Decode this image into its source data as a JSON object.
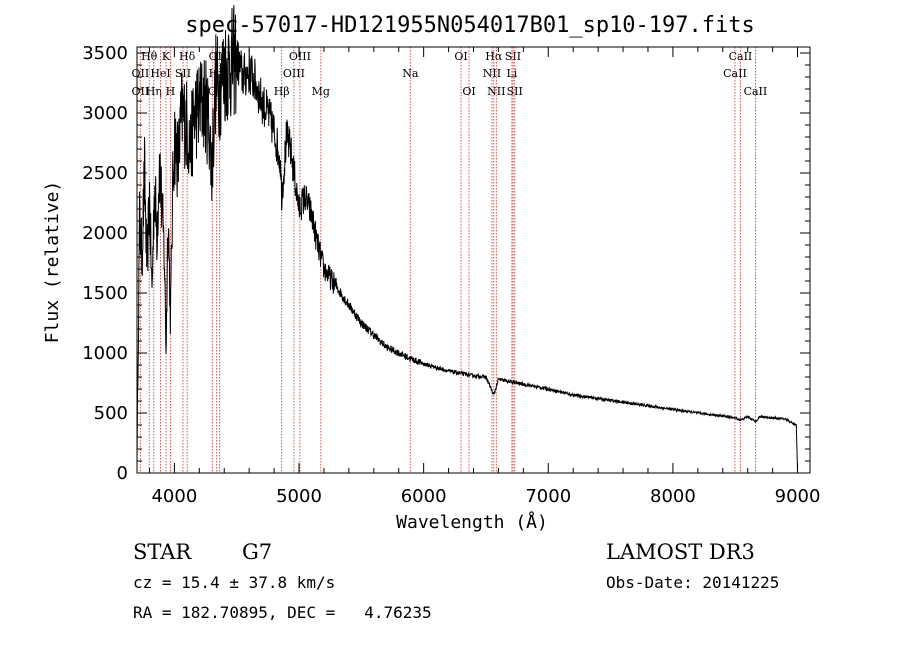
{
  "chart_data": {
    "type": "line",
    "title": "spec-57017-HD121955N054017B01_sp10-197.fits",
    "xlabel": "Wavelength (Å)",
    "ylabel": "Flux (relative)",
    "xlim": [
      3700,
      9100
    ],
    "ylim": [
      0,
      3550
    ],
    "xticks": [
      4000,
      5000,
      6000,
      7000,
      8000,
      9000
    ],
    "yticks": [
      0,
      500,
      1000,
      1500,
      2000,
      2500,
      3000,
      3500
    ],
    "series": [
      {
        "name": "flux",
        "color": "#000000",
        "x": [
          3700,
          3720,
          3740,
          3760,
          3780,
          3800,
          3820,
          3840,
          3860,
          3880,
          3900,
          3920,
          3933,
          3950,
          3968,
          3990,
          4000,
          4030,
          4060,
          4100,
          4130,
          4160,
          4200,
          4240,
          4280,
          4300,
          4330,
          4360,
          4400,
          4450,
          4500,
          4550,
          4600,
          4650,
          4700,
          4750,
          4800,
          4850,
          4861,
          4900,
          4930,
          4960,
          5000,
          5050,
          5100,
          5150,
          5200,
          5300,
          5400,
          5500,
          5600,
          5700,
          5800,
          5900,
          6000,
          6100,
          6200,
          6300,
          6400,
          6500,
          6563,
          6600,
          6700,
          6800,
          7000,
          7200,
          7400,
          7600,
          7800,
          8000,
          8200,
          8400,
          8500,
          8542,
          8600,
          8662,
          8700,
          8800,
          8900,
          8990,
          9000
        ],
        "y": [
          100,
          2100,
          1800,
          2500,
          1700,
          2300,
          1500,
          2400,
          2000,
          2600,
          2200,
          1800,
          1000,
          2200,
          1300,
          2500,
          2800,
          2600,
          3000,
          2900,
          2700,
          3000,
          3050,
          3100,
          2900,
          2500,
          3250,
          3200,
          3350,
          3400,
          3450,
          3300,
          3350,
          3250,
          3100,
          3000,
          2850,
          2600,
          2300,
          2800,
          2700,
          2500,
          2200,
          2300,
          2150,
          1900,
          1700,
          1550,
          1400,
          1250,
          1150,
          1050,
          1000,
          950,
          910,
          880,
          850,
          830,
          810,
          800,
          650,
          780,
          760,
          740,
          700,
          650,
          620,
          590,
          560,
          530,
          500,
          475,
          460,
          440,
          470,
          430,
          470,
          460,
          450,
          400,
          20
        ]
      }
    ],
    "spectral_lines": [
      {
        "label": "Hθ",
        "x": 3798,
        "row": 1
      },
      {
        "label": "OII",
        "x": 3727,
        "row": 2
      },
      {
        "label": "OII",
        "x": 3727,
        "row": 3
      },
      {
        "label": "Hη",
        "x": 3835,
        "row": 3
      },
      {
        "label": "HeI",
        "x": 3889,
        "row": 2
      },
      {
        "label": "K",
        "x": 3933,
        "row": 1
      },
      {
        "label": "SII",
        "x": 4069,
        "row": 2
      },
      {
        "label": "H",
        "x": 3968,
        "row": 3
      },
      {
        "label": "Hδ",
        "x": 4102,
        "row": 1
      },
      {
        "label": "OIII",
        "x": 4363,
        "row": 1
      },
      {
        "label": "Hγ",
        "x": 4340,
        "row": 2
      },
      {
        "label": "G",
        "x": 4304,
        "row": 3
      },
      {
        "label": "Hβ",
        "x": 4861,
        "row": 3
      },
      {
        "label": "OIII",
        "x": 5007,
        "row": 1
      },
      {
        "label": "OIII",
        "x": 4959,
        "row": 2
      },
      {
        "label": "Mg",
        "x": 5175,
        "row": 3
      },
      {
        "label": "Na",
        "x": 5893,
        "row": 2
      },
      {
        "label": "OI",
        "x": 6300,
        "row": 1
      },
      {
        "label": "OI",
        "x": 6364,
        "row": 3
      },
      {
        "label": "Hα",
        "x": 6563,
        "row": 1
      },
      {
        "label": "NII",
        "x": 6548,
        "row": 2
      },
      {
        "label": "NII",
        "x": 6583,
        "row": 3
      },
      {
        "label": "SII",
        "x": 6717,
        "row": 1
      },
      {
        "label": "Li",
        "x": 6708,
        "row": 2
      },
      {
        "label": "SII",
        "x": 6731,
        "row": 3
      },
      {
        "label": "CaII",
        "x": 8542,
        "row": 1
      },
      {
        "label": "CaII",
        "x": 8498,
        "row": 2
      },
      {
        "label": "CaII",
        "x": 8662,
        "row": 3
      }
    ],
    "line_marker_color": "#cc2a2a"
  },
  "info": {
    "class_label": "STAR",
    "subclass": "G7",
    "survey": "LAMOST DR3",
    "cz": "cz = 15.4 ± 37.8 km/s",
    "obs_date": "Obs-Date: 20141225",
    "coords": "RA = 182.70895, DEC =   4.76235"
  }
}
